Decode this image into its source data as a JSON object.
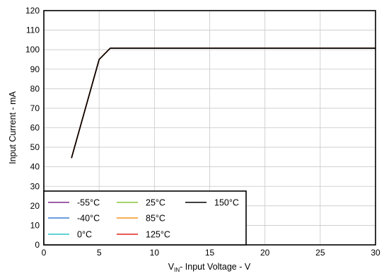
{
  "chart_data": {
    "type": "line",
    "title": "",
    "xlabel": {
      "prefix": "V",
      "subscript": "IN",
      "suffix": "- Input Voltage - V"
    },
    "ylabel": "Input Current - mA",
    "xlim": [
      0,
      30
    ],
    "ylim": [
      0,
      120
    ],
    "x_ticks": [
      0,
      5,
      10,
      15,
      20,
      25,
      30
    ],
    "y_ticks": [
      0,
      10,
      20,
      30,
      40,
      50,
      60,
      70,
      80,
      90,
      100,
      110,
      120
    ],
    "grid": true,
    "legend_position": "bottom-left",
    "series": [
      {
        "name": "-55°C",
        "color": "#7b2d8e",
        "x": [
          2.5,
          5,
          6,
          30
        ],
        "y": [
          44.5,
          95,
          100.7,
          100.7
        ]
      },
      {
        "name": "-40°C",
        "color": "#3a7bd5",
        "x": [
          2.5,
          5,
          6,
          30
        ],
        "y": [
          44.5,
          95,
          100.7,
          100.7
        ]
      },
      {
        "name": "0°C",
        "color": "#2ec4c4",
        "x": [
          2.5,
          5,
          6,
          30
        ],
        "y": [
          44.5,
          95,
          100.7,
          100.7
        ]
      },
      {
        "name": "25°C",
        "color": "#8cc63f",
        "x": [
          2.5,
          5,
          6,
          30
        ],
        "y": [
          44.5,
          95,
          100.7,
          100.7
        ]
      },
      {
        "name": "85°C",
        "color": "#f7941d",
        "x": [
          2.5,
          5,
          6,
          30
        ],
        "y": [
          44.5,
          95,
          100.7,
          100.7
        ]
      },
      {
        "name": "125°C",
        "color": "#e2231a",
        "x": [
          2.5,
          5,
          6,
          30
        ],
        "y": [
          44.5,
          95,
          100.7,
          100.7
        ]
      },
      {
        "name": "150°C",
        "color": "#000000",
        "x": [
          2.5,
          5,
          6,
          30
        ],
        "y": [
          44.5,
          95,
          100.7,
          100.7
        ]
      }
    ]
  }
}
